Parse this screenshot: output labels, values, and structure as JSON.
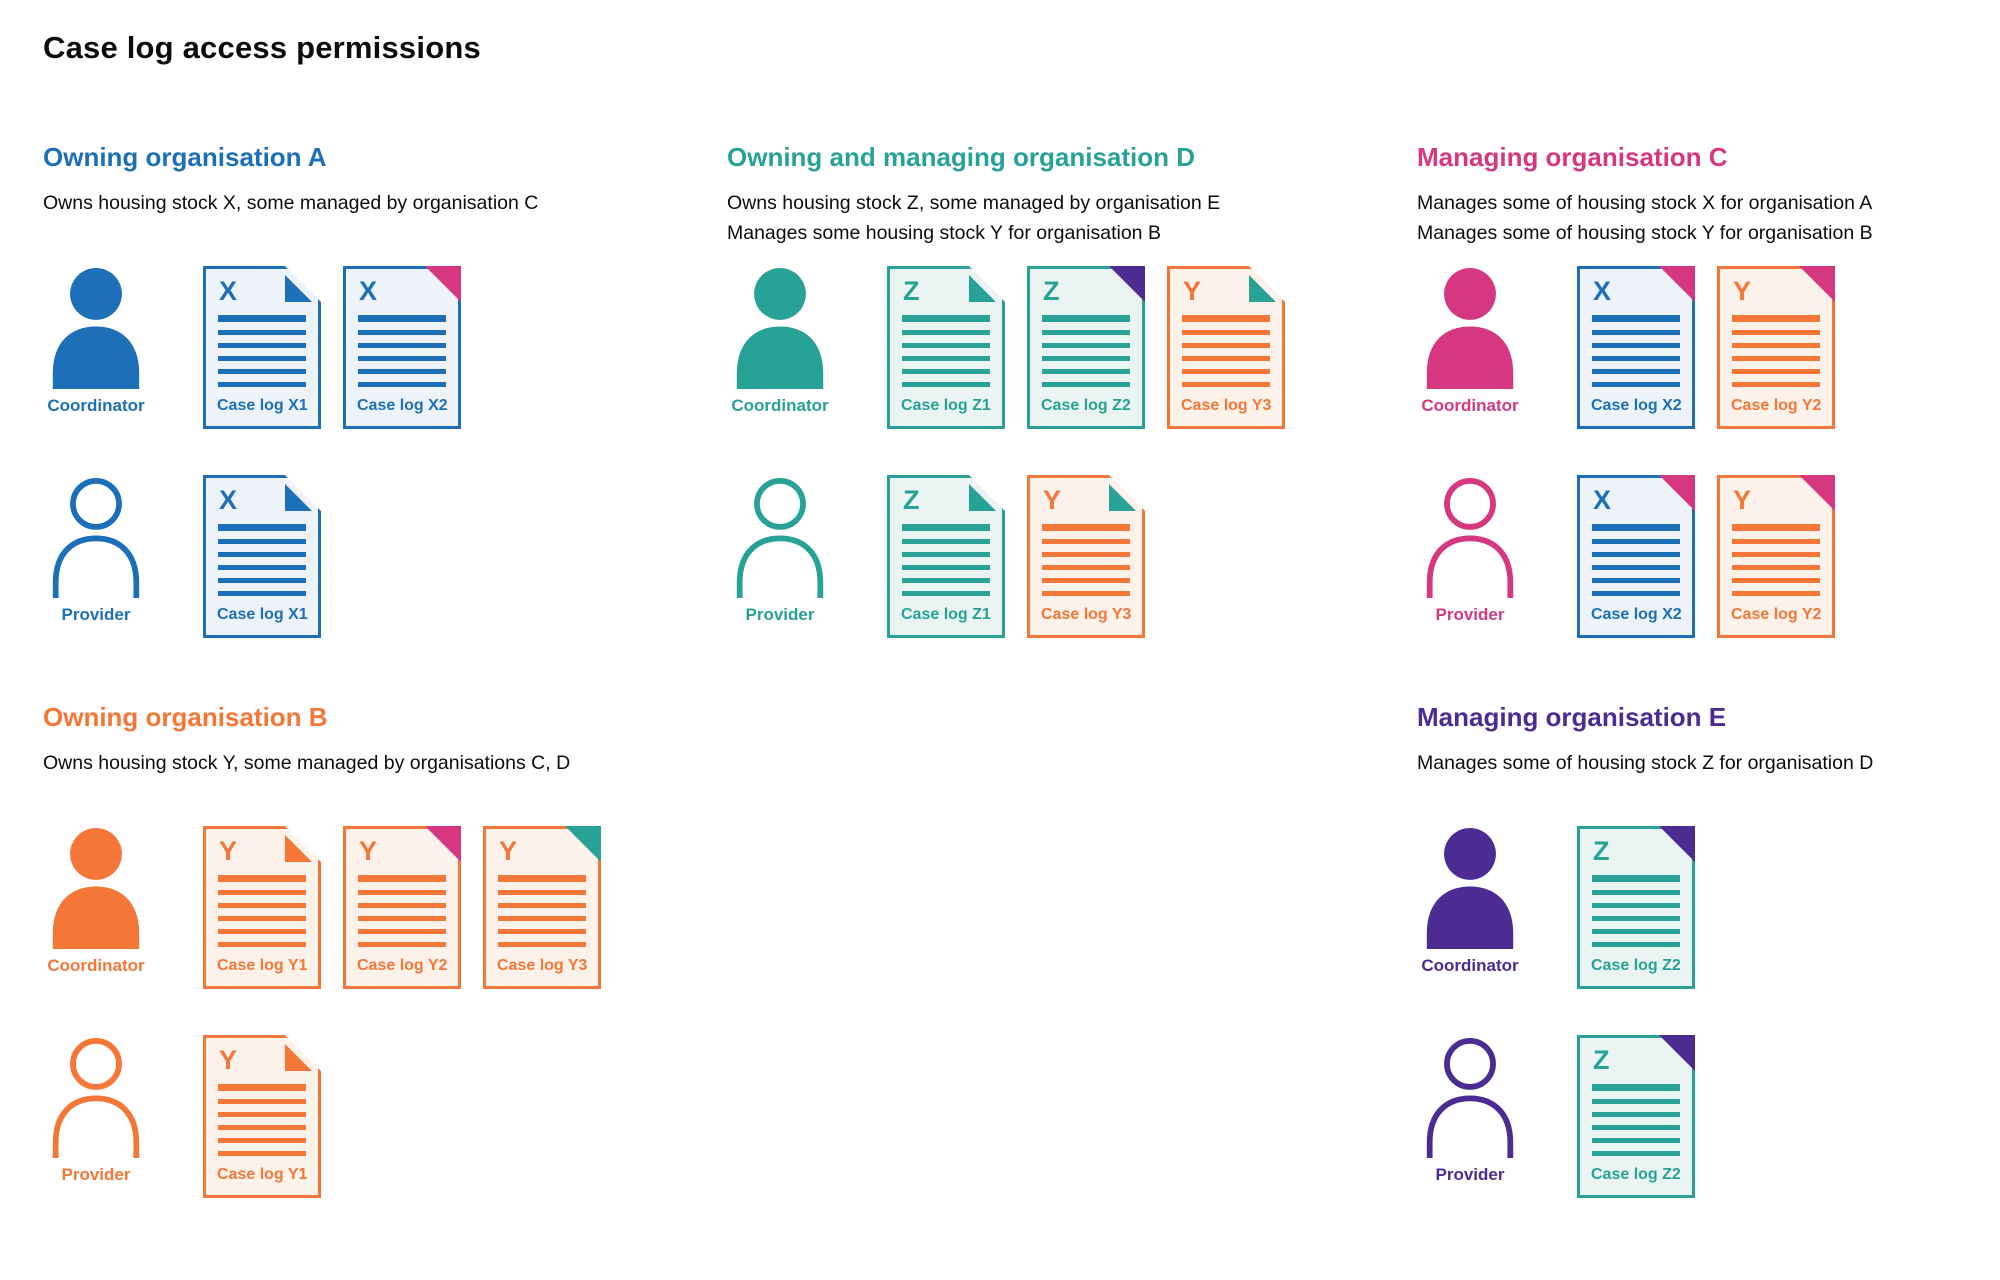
{
  "page_title": "Case log access permissions",
  "colors": {
    "blue": "#1d70b8",
    "teal": "#28a197",
    "pink": "#d53880",
    "orange": "#f47738",
    "purple": "#4c2c92",
    "blue_bg": "#eef3f9",
    "teal_bg": "#eaf5f3",
    "orange_bg": "#fdf2ea",
    "text": "#0b0c0c",
    "background": "#ffffff"
  },
  "sections": [
    {
      "id": "owning-organisation-a",
      "title": "Owning organisation A",
      "color": "blue",
      "description_lines": [
        "Owns housing stock X, some managed by organisation C"
      ],
      "roles": [
        {
          "role": "coordinator",
          "label": "Coordinator",
          "icon": "person-filled",
          "documents": [
            {
              "letter": "X",
              "label": "Case log X1",
              "doc_color": "blue",
              "corner_color": "blue",
              "corner_style": "fold"
            },
            {
              "letter": "X",
              "label": "Case log X2",
              "doc_color": "blue",
              "corner_color": "pink",
              "corner_style": "solid"
            }
          ]
        },
        {
          "role": "provider",
          "label": "Provider",
          "icon": "person-outline",
          "documents": [
            {
              "letter": "X",
              "label": "Case log X1",
              "doc_color": "blue",
              "corner_color": "blue",
              "corner_style": "fold"
            }
          ]
        }
      ]
    },
    {
      "id": "owning-and-managing-organisation-d",
      "title": "Owning and managing organisation D",
      "color": "teal",
      "description_lines": [
        "Owns housing stock Z, some managed by organisation E",
        "Manages some housing stock Y for organisation B"
      ],
      "roles": [
        {
          "role": "coordinator",
          "label": "Coordinator",
          "icon": "person-filled",
          "documents": [
            {
              "letter": "Z",
              "label": "Case log Z1",
              "doc_color": "teal",
              "corner_color": "teal",
              "corner_style": "fold"
            },
            {
              "letter": "Z",
              "label": "Case log Z2",
              "doc_color": "teal",
              "corner_color": "purple",
              "corner_style": "solid"
            },
            {
              "letter": "Y",
              "label": "Case log Y3",
              "doc_color": "orange",
              "corner_color": "teal",
              "corner_style": "fold"
            }
          ]
        },
        {
          "role": "provider",
          "label": "Provider",
          "icon": "person-outline",
          "documents": [
            {
              "letter": "Z",
              "label": "Case log Z1",
              "doc_color": "teal",
              "corner_color": "teal",
              "corner_style": "fold"
            },
            {
              "letter": "Y",
              "label": "Case log Y3",
              "doc_color": "orange",
              "corner_color": "teal",
              "corner_style": "fold"
            }
          ]
        }
      ]
    },
    {
      "id": "managing-organisation-c",
      "title": "Managing organisation C",
      "color": "pink",
      "description_lines": [
        "Manages some of housing stock X for organisation A",
        "Manages some of housing stock Y for organisation B"
      ],
      "roles": [
        {
          "role": "coordinator",
          "label": "Coordinator",
          "icon": "person-filled",
          "documents": [
            {
              "letter": "X",
              "label": "Case log X2",
              "doc_color": "blue",
              "corner_color": "pink",
              "corner_style": "solid"
            },
            {
              "letter": "Y",
              "label": "Case log Y2",
              "doc_color": "orange",
              "corner_color": "pink",
              "corner_style": "solid"
            }
          ]
        },
        {
          "role": "provider",
          "label": "Provider",
          "icon": "person-outline",
          "documents": [
            {
              "letter": "X",
              "label": "Case log X2",
              "doc_color": "blue",
              "corner_color": "pink",
              "corner_style": "solid"
            },
            {
              "letter": "Y",
              "label": "Case log Y2",
              "doc_color": "orange",
              "corner_color": "pink",
              "corner_style": "solid"
            }
          ]
        }
      ]
    },
    {
      "id": "owning-organisation-b",
      "title": "Owning organisation B",
      "color": "orange",
      "description_lines": [
        "Owns housing stock Y, some managed by organisations C, D"
      ],
      "roles": [
        {
          "role": "coordinator",
          "label": "Coordinator",
          "icon": "person-filled",
          "documents": [
            {
              "letter": "Y",
              "label": "Case log Y1",
              "doc_color": "orange",
              "corner_color": "orange",
              "corner_style": "fold"
            },
            {
              "letter": "Y",
              "label": "Case log Y2",
              "doc_color": "orange",
              "corner_color": "pink",
              "corner_style": "solid"
            },
            {
              "letter": "Y",
              "label": "Case log Y3",
              "doc_color": "orange",
              "corner_color": "teal",
              "corner_style": "solid"
            }
          ]
        },
        {
          "role": "provider",
          "label": "Provider",
          "icon": "person-outline",
          "documents": [
            {
              "letter": "Y",
              "label": "Case log Y1",
              "doc_color": "orange",
              "corner_color": "orange",
              "corner_style": "fold"
            }
          ]
        }
      ]
    },
    {
      "id": "managing-organisation-e",
      "title": "Managing organisation E",
      "color": "purple",
      "description_lines": [
        "Manages some of housing stock Z for organisation D"
      ],
      "roles": [
        {
          "role": "coordinator",
          "label": "Coordinator",
          "icon": "person-filled",
          "documents": [
            {
              "letter": "Z",
              "label": "Case log Z2",
              "doc_color": "teal",
              "corner_color": "purple",
              "corner_style": "solid"
            }
          ]
        },
        {
          "role": "provider",
          "label": "Provider",
          "icon": "person-outline",
          "documents": [
            {
              "letter": "Z",
              "label": "Case log Z2",
              "doc_color": "teal",
              "corner_color": "purple",
              "corner_style": "solid"
            }
          ]
        }
      ]
    }
  ]
}
